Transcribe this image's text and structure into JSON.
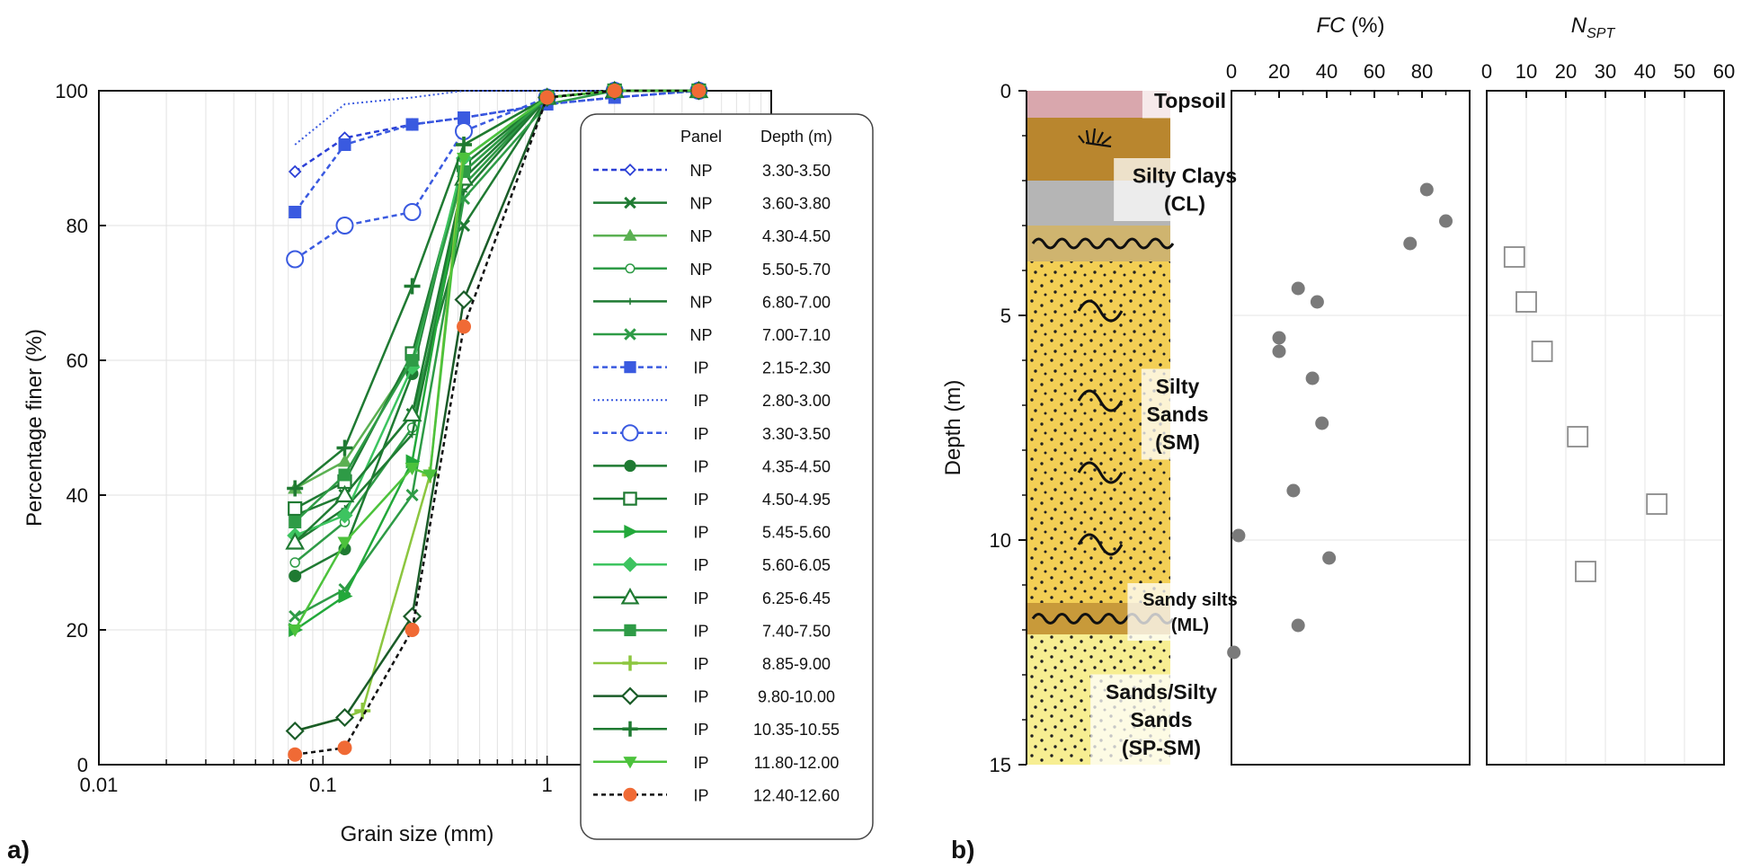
{
  "panel_a_letter": "a)",
  "panel_b_letter": "b)",
  "colors": {
    "np_blue": "#2b3fd6",
    "ip_blue": "#3a5ae0",
    "green_dark": "#1f7a32",
    "green_mid": "#2e9b46",
    "green_light": "#7fcf6a",
    "black": "#111111",
    "orange": "#f06a35"
  },
  "chart_data": [
    {
      "type": "line",
      "xscale": "log",
      "xlabel": "Grain size (mm)",
      "ylabel": "Percentage finer (%)",
      "xlim": [
        0.01,
        10
      ],
      "ylim": [
        0,
        100
      ],
      "xticks": [
        "0.01",
        "0.1",
        "1"
      ],
      "yticks": [
        "0",
        "20",
        "40",
        "60",
        "80",
        "100"
      ],
      "grid": true,
      "legend": {
        "placement": "right",
        "header_panel": "Panel",
        "header_depth": "Depth (m)"
      },
      "series": [
        {
          "name": "3.30-3.50",
          "panel": "NP",
          "color": "#2b3fd6",
          "dash": "6,4",
          "marker": "smalldiamond",
          "x": [
            0.075,
            0.125,
            0.25,
            0.425,
            1,
            2,
            4.75
          ],
          "y": [
            88,
            93,
            95,
            96,
            98,
            99,
            100
          ]
        },
        {
          "name": "3.60-3.80",
          "panel": "NP",
          "color": "#1f7a32",
          "dash": "",
          "marker": "x",
          "x": [
            0.075,
            0.125,
            0.25,
            0.425,
            1,
            2,
            4.75
          ],
          "y": [
            37,
            40,
            52,
            80,
            99,
            100,
            100
          ]
        },
        {
          "name": "4.30-4.50",
          "panel": "NP",
          "color": "#5bb052",
          "dash": "",
          "marker": "triangle",
          "x": [
            0.075,
            0.125,
            0.25,
            0.425,
            1,
            2,
            4.75
          ],
          "y": [
            41,
            45,
            60,
            88,
            99,
            100,
            100
          ]
        },
        {
          "name": "5.50-5.70",
          "panel": "NP",
          "color": "#2e9b46",
          "dash": "",
          "marker": "smallcircle",
          "x": [
            0.075,
            0.125,
            0.25,
            0.425,
            1,
            2,
            4.75
          ],
          "y": [
            30,
            36,
            50,
            86,
            99,
            100,
            100
          ]
        },
        {
          "name": "6.80-7.00",
          "panel": "NP",
          "color": "#1f7a32",
          "dash": "",
          "marker": "tinyplus",
          "x": [
            0.075,
            0.125,
            0.25,
            0.425,
            1,
            2,
            4.75
          ],
          "y": [
            33,
            38,
            49,
            85,
            99,
            100,
            100
          ]
        },
        {
          "name": "7.00-7.10",
          "panel": "NP",
          "color": "#2e9b46",
          "dash": "",
          "marker": "x",
          "x": [
            0.075,
            0.125,
            0.25,
            0.425,
            1,
            2,
            4.75
          ],
          "y": [
            22,
            26,
            40,
            84,
            98,
            100,
            100
          ]
        },
        {
          "name": "2.15-2.30",
          "panel": "IP",
          "color": "#3a5ae0",
          "dash": "6,4",
          "marker": "square",
          "x": [
            0.075,
            0.125,
            0.25,
            0.425,
            1,
            2,
            4.75
          ],
          "y": [
            82,
            92,
            95,
            96,
            98,
            99,
            100
          ]
        },
        {
          "name": "2.80-3.00",
          "panel": "IP",
          "color": "#3a5ae0",
          "dash": "2,3",
          "marker": "none",
          "x": [
            0.075,
            0.125,
            0.25,
            0.425,
            1,
            2,
            4.75
          ],
          "y": [
            92,
            98,
            99,
            100,
            100,
            100,
            100
          ]
        },
        {
          "name": "3.30-3.50",
          "panel": "IP",
          "color": "#3a5ae0",
          "dash": "6,4",
          "marker": "opencircle",
          "x": [
            0.075,
            0.125,
            0.25,
            0.425,
            1,
            2,
            4.75
          ],
          "y": [
            75,
            80,
            82,
            94,
            99,
            100,
            100
          ]
        },
        {
          "name": "4.35-4.50",
          "panel": "IP",
          "color": "#1f7a32",
          "dash": "",
          "marker": "circle",
          "x": [
            0.075,
            0.125,
            0.25,
            0.425,
            1,
            2,
            4.75
          ],
          "y": [
            28,
            32,
            58,
            90,
            99,
            100,
            100
          ]
        },
        {
          "name": "4.50-4.95",
          "panel": "IP",
          "color": "#1f7a32",
          "dash": "",
          "marker": "opensquare",
          "x": [
            0.075,
            0.125,
            0.25,
            0.425,
            1,
            2,
            4.75
          ],
          "y": [
            38,
            42,
            61,
            89,
            99,
            100,
            100
          ]
        },
        {
          "name": "5.45-5.60",
          "panel": "IP",
          "color": "#22a83a",
          "dash": "",
          "marker": "righttriangle",
          "x": [
            0.075,
            0.125,
            0.25,
            0.425,
            1,
            2,
            4.75
          ],
          "y": [
            20,
            25,
            45,
            88,
            99,
            100,
            100
          ]
        },
        {
          "name": "5.60-6.05",
          "panel": "IP",
          "color": "#3dc460",
          "dash": "",
          "marker": "diamond",
          "x": [
            0.075,
            0.125,
            0.25,
            0.425,
            1,
            2,
            4.75
          ],
          "y": [
            34,
            37,
            59,
            90,
            99,
            100,
            100
          ]
        },
        {
          "name": "6.25-6.45",
          "panel": "IP",
          "color": "#1f7a32",
          "dash": "",
          "marker": "opentriangle",
          "x": [
            0.075,
            0.125,
            0.25,
            0.425,
            1,
            2,
            4.75
          ],
          "y": [
            33,
            40,
            52,
            87,
            99,
            100,
            100
          ]
        },
        {
          "name": "7.40-7.50",
          "panel": "IP",
          "color": "#2e9b46",
          "dash": "",
          "marker": "square",
          "x": [
            0.075,
            0.125,
            0.25,
            0.425,
            1,
            2,
            4.75
          ],
          "y": [
            36,
            43,
            60,
            88,
            99,
            100,
            100
          ]
        },
        {
          "name": "8.85-9.00",
          "panel": "IP",
          "color": "#8cc63f",
          "dash": "",
          "marker": "plus",
          "x": [
            0.075,
            0.125,
            0.15,
            0.3,
            0.425,
            1,
            2,
            4.75
          ],
          "y": [
            5,
            7,
            8,
            43,
            92,
            99,
            100,
            100
          ]
        },
        {
          "name": "9.80-10.00",
          "panel": "IP",
          "color": "#1a5c28",
          "dash": "",
          "marker": "opendiamond",
          "x": [
            0.075,
            0.125,
            0.25,
            0.425,
            1,
            2,
            4.75
          ],
          "y": [
            5,
            7,
            22,
            69,
            99,
            100,
            100
          ]
        },
        {
          "name": "10.35-10.55",
          "panel": "IP",
          "color": "#1f7a32",
          "dash": "",
          "marker": "plus",
          "x": [
            0.075,
            0.125,
            0.25,
            0.425,
            1,
            2,
            4.75
          ],
          "y": [
            41,
            47,
            71,
            92,
            99,
            100,
            100
          ]
        },
        {
          "name": "11.80-12.00",
          "panel": "IP",
          "color": "#4cc23c",
          "dash": "",
          "marker": "downtriangle",
          "x": [
            0.075,
            0.125,
            0.25,
            0.3,
            0.425,
            1,
            2,
            4.75
          ],
          "y": [
            20,
            33,
            44,
            43,
            90,
            99,
            100,
            100
          ]
        },
        {
          "name": "12.40-12.60",
          "panel": "IP",
          "color": "#111111",
          "dash": "5,4",
          "marker": "orangecircle",
          "x": [
            0.075,
            0.125,
            0.25,
            0.425,
            1,
            2,
            4.75
          ],
          "y": [
            1.5,
            2.5,
            20,
            65,
            99,
            100,
            100
          ]
        }
      ]
    },
    {
      "type": "scatter",
      "xlabel": "FC (%)",
      "ylabel": "Depth (m)",
      "xlim": [
        0,
        100
      ],
      "ylim": [
        0,
        15
      ],
      "xticks": [
        "0",
        "20",
        "40",
        "60",
        "80"
      ],
      "yticks": [
        "0",
        "5",
        "10",
        "15"
      ],
      "x": [
        82,
        90,
        75,
        28,
        36,
        20,
        20,
        34,
        38,
        26,
        3,
        41,
        28,
        1
      ],
      "y": [
        2.2,
        2.9,
        3.4,
        4.4,
        4.7,
        5.5,
        5.8,
        6.4,
        7.4,
        8.9,
        9.9,
        10.4,
        11.9,
        12.5
      ]
    },
    {
      "type": "scatter",
      "xlabel": "N_SPT",
      "xlim": [
        0,
        60
      ],
      "xticks": [
        "0",
        "10",
        "20",
        "30",
        "40",
        "50",
        "60"
      ],
      "x": [
        7,
        10,
        14,
        23,
        43,
        25
      ],
      "y": [
        3.7,
        4.7,
        5.8,
        7.7,
        9.2,
        10.7
      ]
    }
  ],
  "soil_profile": {
    "layers": [
      {
        "label": "Topsoil",
        "top": 0,
        "bottom": 0.6,
        "color": "#d9a7ad",
        "pattern": "none"
      },
      {
        "label": "",
        "top": 0.6,
        "bottom": 2.0,
        "color": "#b9862e",
        "pattern": "grass"
      },
      {
        "label": "",
        "top": 2.0,
        "bottom": 3.0,
        "color": "#b5b5b5",
        "pattern": "none"
      },
      {
        "label": "",
        "top": 3.0,
        "bottom": 3.8,
        "color": "#cfb46f",
        "pattern": "waves"
      },
      {
        "label": "",
        "top": 3.8,
        "bottom": 11.4,
        "color": "#f3cf55",
        "pattern": "dots"
      },
      {
        "label": "",
        "top": 11.4,
        "bottom": 12.1,
        "color": "#c89a3a",
        "pattern": "waves"
      },
      {
        "label": "",
        "top": 12.1,
        "bottom": 15,
        "color": "#f7ee92",
        "pattern": "dots"
      }
    ],
    "labels": [
      {
        "lines": [
          "Topsoil"
        ],
        "depth": 0.22,
        "size": "lg"
      },
      {
        "lines": [
          "Silty Clays",
          "(CL)"
        ],
        "depth": 2.2,
        "size": "lg"
      },
      {
        "lines": [
          "Silty",
          "Sands",
          "(SM)"
        ],
        "depth": 7.2,
        "size": "lg"
      },
      {
        "lines": [
          "Sandy silts",
          "(ML)"
        ],
        "depth": 11.6,
        "size": "md"
      },
      {
        "lines": [
          "Sands/Silty",
          "Sands",
          "(SP-SM)"
        ],
        "depth": 14.0,
        "size": "lg"
      }
    ]
  }
}
